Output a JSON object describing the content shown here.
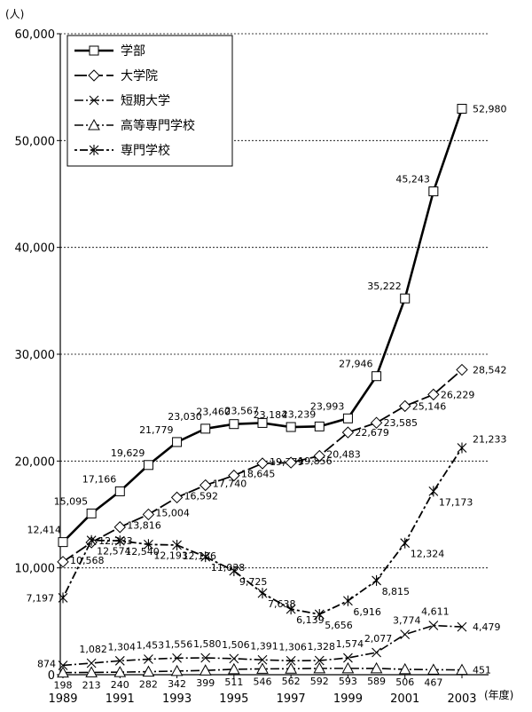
{
  "chart_data": {
    "type": "line",
    "y_unit_label": "(人)",
    "x_unit_label": "(年度)",
    "ylim": [
      0,
      60000
    ],
    "y_ticks": [
      "0",
      "10,000",
      "20,000",
      "30,000",
      "40,000",
      "50,000",
      "60,000"
    ],
    "y_tick_values": [
      0,
      10000,
      20000,
      30000,
      40000,
      50000,
      60000
    ],
    "x": [
      1989,
      1990,
      1991,
      1992,
      1993,
      1994,
      1995,
      1996,
      1997,
      1998,
      1999,
      2000,
      2001,
      2002,
      2003
    ],
    "x_ticks": [
      "1989",
      "1991",
      "1993",
      "1995",
      "1997",
      "1999",
      "2001",
      "2003"
    ],
    "grid": "horizontal dashed",
    "legend_position": "top-left",
    "series": [
      {
        "name": "学部",
        "marker": "square",
        "line": "solid-thick",
        "values": [
          12414,
          15095,
          17166,
          19629,
          21779,
          23030,
          23460,
          23567,
          23184,
          23239,
          23993,
          27946,
          35222,
          45243,
          52980
        ],
        "labels": [
          "12,414",
          "15,095",
          "17,166",
          "19,629",
          "21,779",
          "23,030",
          "23,460",
          "23,567",
          "23,184",
          "23,239",
          "23,993",
          "27,946",
          "35,222",
          "45,243",
          "52,980"
        ]
      },
      {
        "name": "大学院",
        "marker": "diamond",
        "line": "dash-long",
        "values": [
          10568,
          12383,
          13816,
          15004,
          16592,
          17740,
          18645,
          19779,
          19856,
          20483,
          22679,
          23585,
          25146,
          26229,
          28542
        ],
        "labels": [
          "10,568",
          "12,383",
          "13,816",
          "15,004",
          "16,592",
          "17,740",
          "18,645",
          "19,779",
          "19,856",
          "20,483",
          "22,679",
          "23,585",
          "25,146",
          "26,229",
          "28,542"
        ]
      },
      {
        "name": "短期大学",
        "marker": "x",
        "line": "dash-dot",
        "values": [
          874,
          1082,
          1304,
          1453,
          1556,
          1580,
          1506,
          1391,
          1306,
          1328,
          1574,
          2077,
          3774,
          4611,
          4479
        ],
        "labels": [
          "874",
          "1,082",
          "1,304",
          "1,453",
          "1,556",
          "1,580",
          "1,506",
          "1,391",
          "1,306",
          "1,328",
          "1,574",
          "2,077",
          "3,774",
          "4,611",
          "4,479"
        ]
      },
      {
        "name": "高等専門学校",
        "marker": "triangle",
        "line": "dash-dot",
        "values": [
          198,
          213,
          240,
          282,
          342,
          399,
          511,
          546,
          562,
          592,
          593,
          589,
          506,
          467,
          451
        ],
        "labels": [
          "198",
          "213",
          "240",
          "282",
          "342",
          "399",
          "511",
          "546",
          "562",
          "592",
          "593",
          "589",
          "506",
          "467",
          "451"
        ]
      },
      {
        "name": "専門学校",
        "marker": "asterisk",
        "line": "dotted-dash",
        "values": [
          7197,
          12574,
          12540,
          12193,
          12136,
          11038,
          9725,
          7638,
          6139,
          5656,
          6916,
          8815,
          12324,
          17173,
          21233
        ],
        "labels": [
          "7,197",
          "12,574",
          "12,540",
          "12,193",
          "12,136",
          "11,038",
          "9,725",
          "7,638",
          "6,139",
          "5,656",
          "6,916",
          "8,815",
          "12,324",
          "17,173",
          "21,233"
        ]
      }
    ]
  }
}
